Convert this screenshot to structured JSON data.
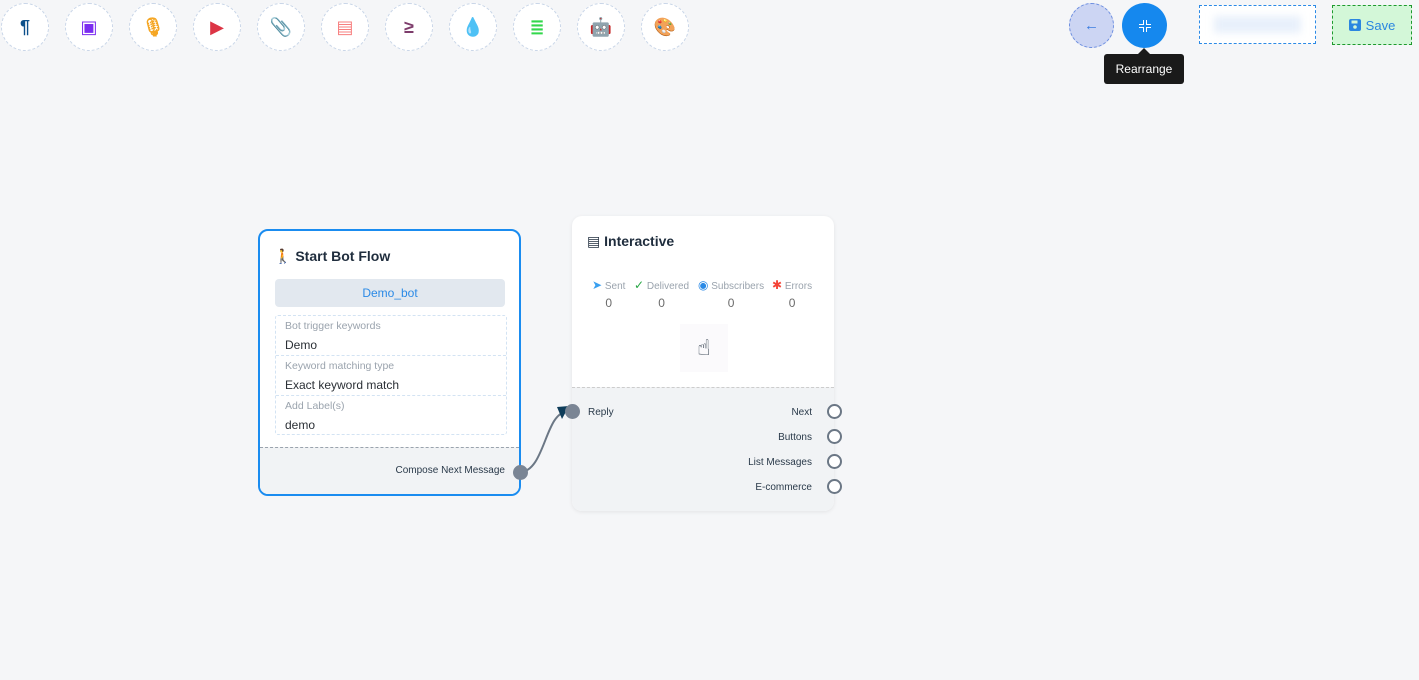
{
  "toolbar": {
    "tools": [
      {
        "icon": "paragraph-icon",
        "glyph": "¶",
        "color": "#0b4f8a"
      },
      {
        "icon": "image-icon",
        "glyph": "▣",
        "color": "#7b2cf0"
      },
      {
        "icon": "microphone-icon",
        "glyph": "🎙",
        "color": "#f5a623"
      },
      {
        "icon": "youtube-icon",
        "glyph": "▶",
        "color": "#dc3545"
      },
      {
        "icon": "paperclip-icon",
        "glyph": "📎",
        "color": "#28a745"
      },
      {
        "icon": "newspaper-icon",
        "glyph": "▤",
        "color": "#f77f7f"
      },
      {
        "icon": "greater-equal-icon",
        "glyph": "≥",
        "color": "#7d3c6b"
      },
      {
        "icon": "drop-icon",
        "glyph": "💧",
        "color": "#c8102e"
      },
      {
        "icon": "stack-icon",
        "glyph": "≣",
        "color": "#32d74b"
      },
      {
        "icon": "robot-icon",
        "glyph": "🤖",
        "color": "#1010e0"
      },
      {
        "icon": "palette-icon",
        "glyph": "🎨",
        "color": "#17c21a"
      }
    ]
  },
  "actions": {
    "back_glyph": "←",
    "rearrange_tooltip": "Rearrange",
    "save_label": "Save"
  },
  "start_node": {
    "title": "Start Bot Flow",
    "bot_name": "Demo_bot",
    "fields": [
      {
        "label": "Bot trigger keywords",
        "value": "Demo"
      },
      {
        "label": "Keyword matching type",
        "value": "Exact keyword match"
      },
      {
        "label": "Add Label(s)",
        "value": "demo"
      }
    ],
    "output": "Compose Next Message"
  },
  "interactive_node": {
    "title": "Interactive",
    "stats": [
      {
        "label": "Sent",
        "value": "0",
        "icon": "paper-plane-icon",
        "color": "#3aa0f0"
      },
      {
        "label": "Delivered",
        "value": "0",
        "icon": "check-circle-icon",
        "color": "#28a745"
      },
      {
        "label": "Subscribers",
        "value": "0",
        "icon": "user-circle-icon",
        "color": "#2b8ae6"
      },
      {
        "label": "Errors",
        "value": "0",
        "icon": "bug-icon",
        "color": "#f44336"
      }
    ],
    "input": "Reply",
    "outputs": [
      "Next",
      "Buttons",
      "List Messages",
      "E-commerce"
    ]
  }
}
